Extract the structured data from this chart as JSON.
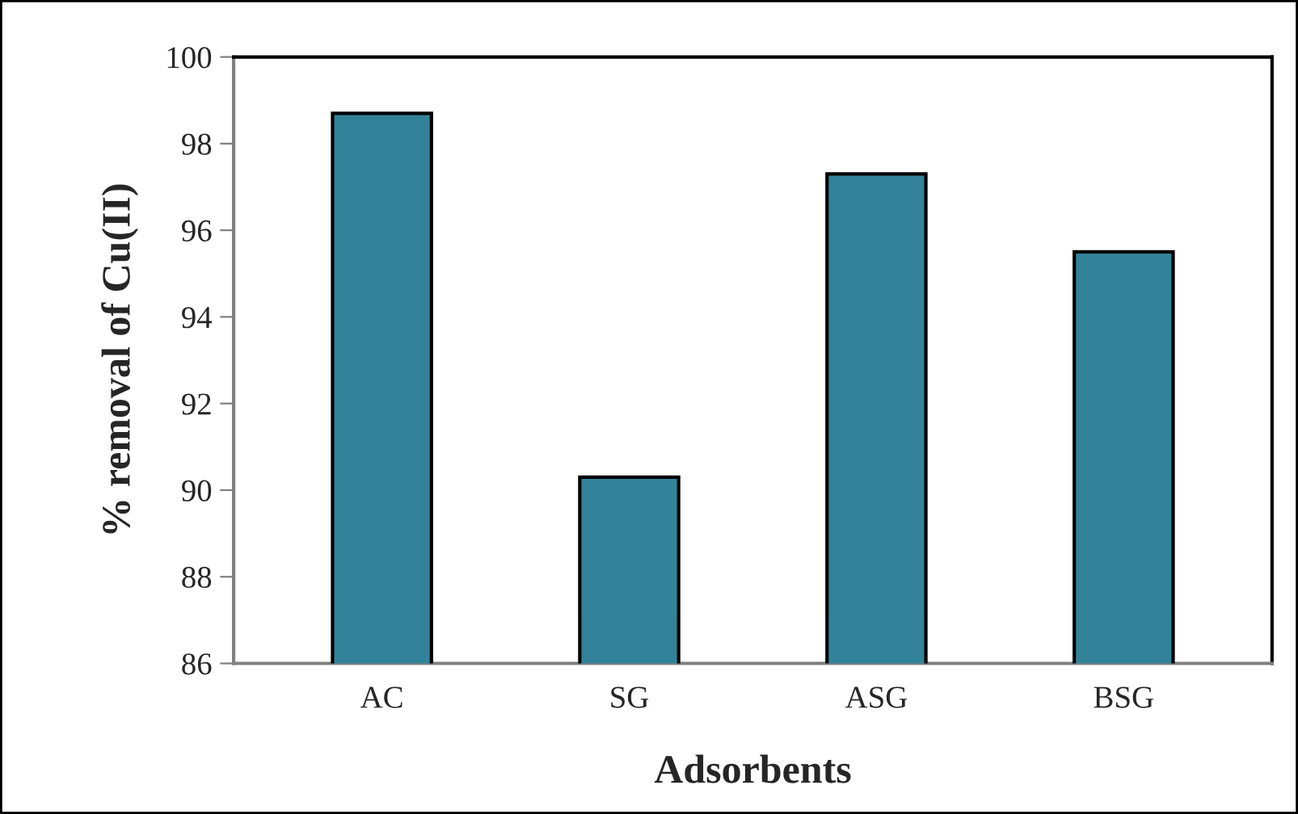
{
  "chart_data": {
    "type": "bar",
    "xlabel": "Adsorbents",
    "ylabel": "% removal of Cu(II)",
    "categories": [
      "AC",
      "SG",
      "ASG",
      "BSG"
    ],
    "values": [
      98.7,
      90.3,
      97.3,
      95.5
    ],
    "color": "#328399",
    "ylim": [
      86,
      100
    ],
    "yticks": [
      86,
      88,
      90,
      92,
      94,
      96,
      98,
      100
    ],
    "grid": false,
    "legend": false
  }
}
